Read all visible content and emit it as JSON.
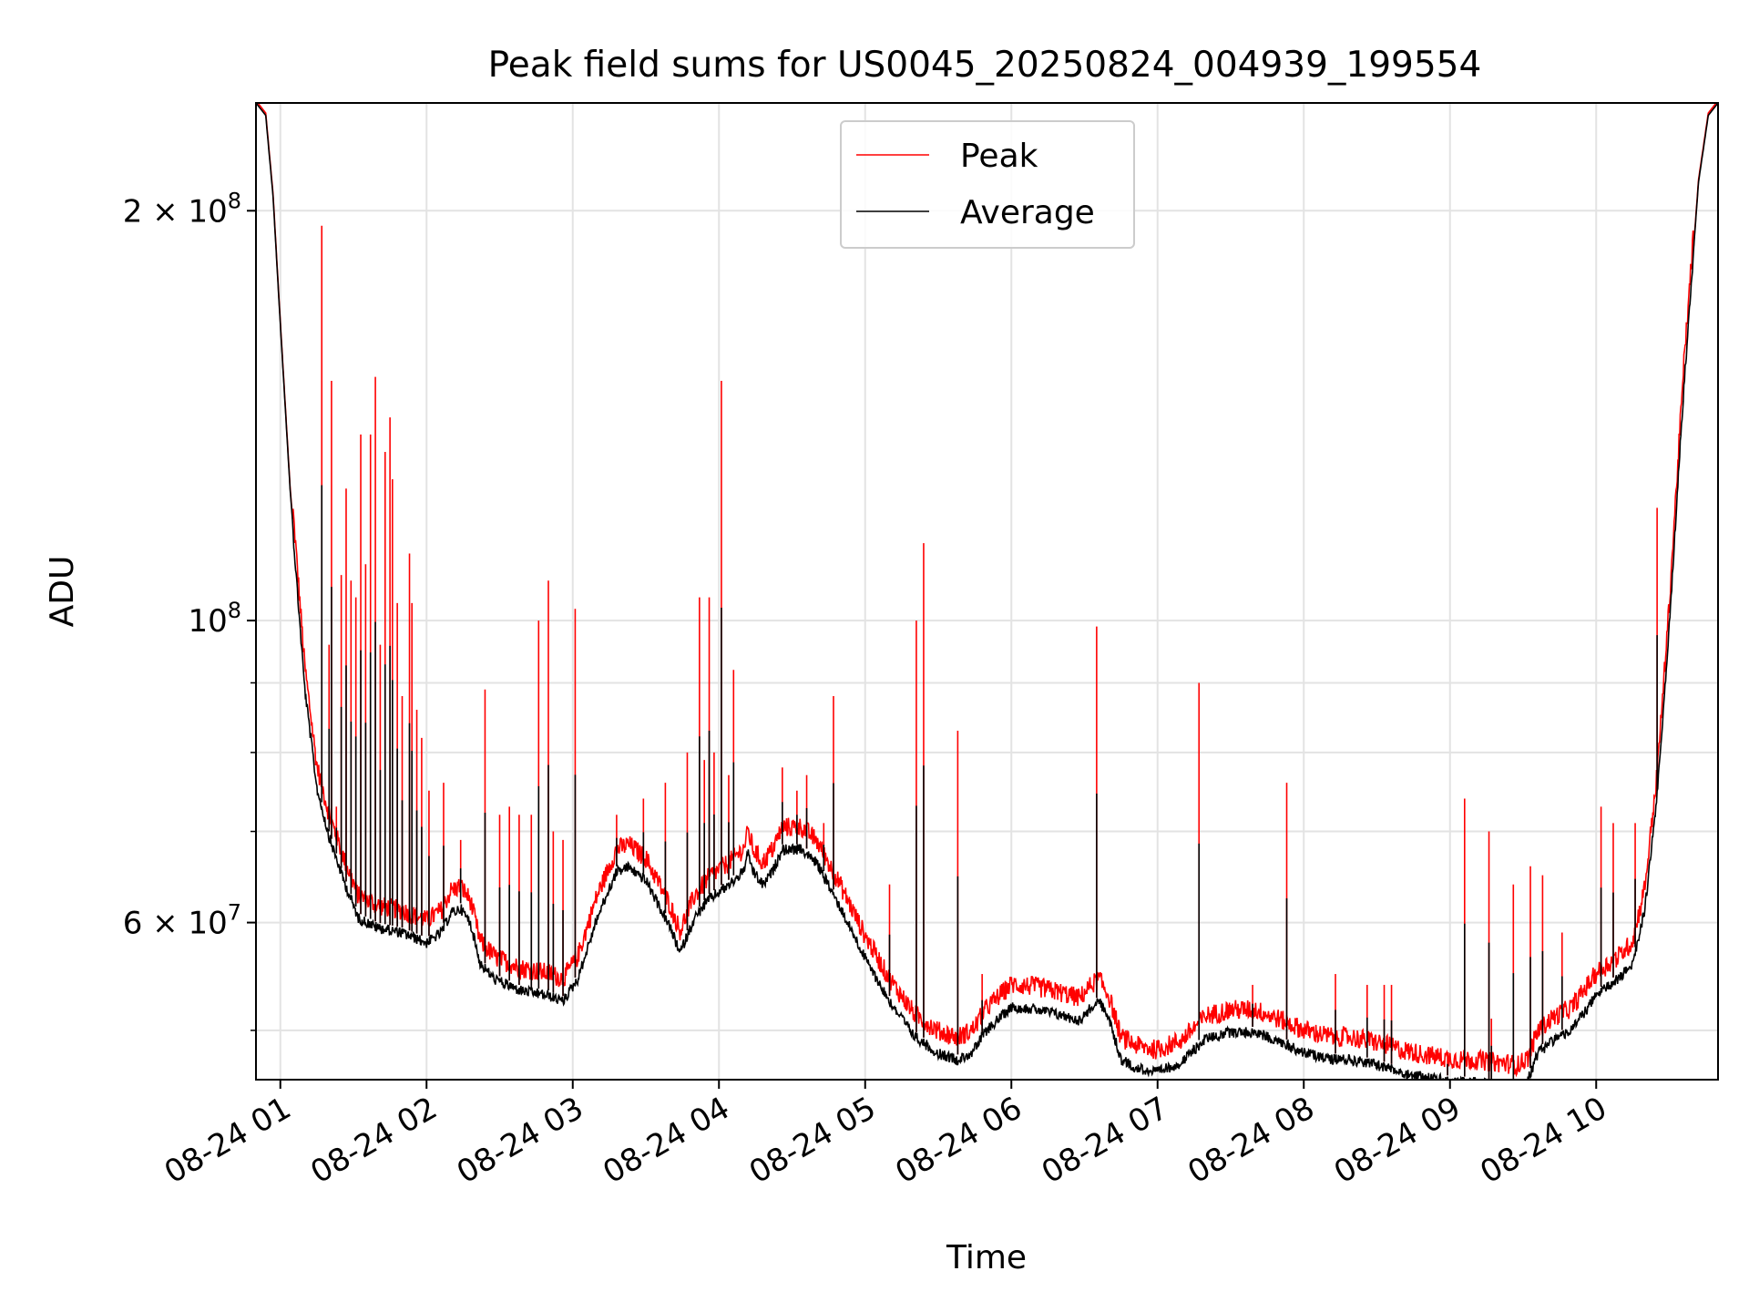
{
  "chart_data": {
    "type": "line",
    "title": "Peak field sums for US0045_20250824_004939_199554",
    "xlabel": "Time",
    "ylabel": "ADU",
    "x_scale": "time",
    "y_scale": "log",
    "xlim": [
      "2025-08-24 00:50",
      "2025-08-24 10:50"
    ],
    "ylim": [
      46000000,
      240000000
    ],
    "grid": true,
    "legend_position": "upper center",
    "x_ticks": [
      {
        "value": "2025-08-24 01:00",
        "label": "08-24 01"
      },
      {
        "value": "2025-08-24 02:00",
        "label": "08-24 02"
      },
      {
        "value": "2025-08-24 03:00",
        "label": "08-24 03"
      },
      {
        "value": "2025-08-24 04:00",
        "label": "08-24 04"
      },
      {
        "value": "2025-08-24 05:00",
        "label": "08-24 05"
      },
      {
        "value": "2025-08-24 06:00",
        "label": "08-24 06"
      },
      {
        "value": "2025-08-24 07:00",
        "label": "08-24 07"
      },
      {
        "value": "2025-08-24 08:00",
        "label": "08-24 08"
      },
      {
        "value": "2025-08-24 09:00",
        "label": "08-24 09"
      },
      {
        "value": "2025-08-24 10:00",
        "label": "08-24 10"
      }
    ],
    "y_major_ticks": [
      {
        "value": 100000000,
        "mantissa": "",
        "base": "10",
        "exp": "8"
      },
      {
        "value": 200000000,
        "mantissa": "2 × ",
        "base": "10",
        "exp": "8"
      },
      {
        "value": 60000000,
        "mantissa": "6 × ",
        "base": "10",
        "exp": "7"
      }
    ],
    "y_minor_ticks": [
      50000000,
      70000000,
      80000000,
      90000000
    ],
    "series": [
      {
        "name": "Peak",
        "color": "#ff0000",
        "spike_data": [
          [
            "2025-08-24 01:17",
            195000000
          ],
          [
            "2025-08-24 01:20",
            96000000
          ],
          [
            "2025-08-24 01:21",
            150000000
          ],
          [
            "2025-08-24 01:23",
            73000000
          ],
          [
            "2025-08-24 01:25",
            108000000
          ],
          [
            "2025-08-24 01:27",
            125000000
          ],
          [
            "2025-08-24 01:29",
            107000000
          ],
          [
            "2025-08-24 01:31",
            104000000
          ],
          [
            "2025-08-24 01:33",
            137000000
          ],
          [
            "2025-08-24 01:35",
            110000000
          ],
          [
            "2025-08-24 01:37",
            137000000
          ],
          [
            "2025-08-24 01:39",
            151000000
          ],
          [
            "2025-08-24 01:41",
            96000000
          ],
          [
            "2025-08-24 01:43",
            133000000
          ],
          [
            "2025-08-24 01:45",
            141000000
          ],
          [
            "2025-08-24 01:46",
            127000000
          ],
          [
            "2025-08-24 01:48",
            103000000
          ],
          [
            "2025-08-24 01:50",
            88000000
          ],
          [
            "2025-08-24 01:53",
            112000000
          ],
          [
            "2025-08-24 01:54",
            103000000
          ],
          [
            "2025-08-24 01:56",
            86000000
          ],
          [
            "2025-08-24 01:58",
            82000000
          ],
          [
            "2025-08-24 02:01",
            75000000
          ],
          [
            "2025-08-24 02:07",
            76000000
          ],
          [
            "2025-08-24 02:14",
            69000000
          ],
          [
            "2025-08-24 02:24",
            89000000
          ],
          [
            "2025-08-24 02:30",
            72000000
          ],
          [
            "2025-08-24 02:34",
            73000000
          ],
          [
            "2025-08-24 02:38",
            72000000
          ],
          [
            "2025-08-24 02:43",
            72000000
          ],
          [
            "2025-08-24 02:46",
            100000000
          ],
          [
            "2025-08-24 02:50",
            107000000
          ],
          [
            "2025-08-24 02:52",
            70000000
          ],
          [
            "2025-08-24 02:56",
            69000000
          ],
          [
            "2025-08-24 03:01",
            102000000
          ],
          [
            "2025-08-24 03:18",
            72000000
          ],
          [
            "2025-08-24 03:29",
            74000000
          ],
          [
            "2025-08-24 03:38",
            76000000
          ],
          [
            "2025-08-24 03:47",
            80000000
          ],
          [
            "2025-08-24 03:52",
            104000000
          ],
          [
            "2025-08-24 03:54",
            79000000
          ],
          [
            "2025-08-24 03:56",
            104000000
          ],
          [
            "2025-08-24 03:58",
            80000000
          ],
          [
            "2025-08-24 04:01",
            150000000
          ],
          [
            "2025-08-24 04:04",
            77000000
          ],
          [
            "2025-08-24 04:06",
            92000000
          ],
          [
            "2025-08-24 04:26",
            78000000
          ],
          [
            "2025-08-24 04:32",
            75000000
          ],
          [
            "2025-08-24 04:36",
            77000000
          ],
          [
            "2025-08-24 04:43",
            71000000
          ],
          [
            "2025-08-24 04:47",
            88000000
          ],
          [
            "2025-08-24 05:10",
            64000000
          ],
          [
            "2025-08-24 05:21",
            100000000
          ],
          [
            "2025-08-24 05:24",
            114000000
          ],
          [
            "2025-08-24 05:38",
            83000000
          ],
          [
            "2025-08-24 05:48",
            55000000
          ],
          [
            "2025-08-24 06:35",
            99000000
          ],
          [
            "2025-08-24 07:17",
            90000000
          ],
          [
            "2025-08-24 07:39",
            54000000
          ],
          [
            "2025-08-24 07:53",
            76000000
          ],
          [
            "2025-08-24 08:13",
            55000000
          ],
          [
            "2025-08-24 08:26",
            54000000
          ],
          [
            "2025-08-24 08:33",
            54000000
          ],
          [
            "2025-08-24 08:36",
            54000000
          ],
          [
            "2025-08-24 08:59",
            48000000
          ],
          [
            "2025-08-24 09:06",
            74000000
          ],
          [
            "2025-08-24 09:16",
            70000000
          ],
          [
            "2025-08-24 09:17",
            51000000
          ],
          [
            "2025-08-24 09:26",
            64000000
          ],
          [
            "2025-08-24 09:33",
            66000000
          ],
          [
            "2025-08-24 09:38",
            65000000
          ],
          [
            "2025-08-24 09:46",
            59000000
          ],
          [
            "2025-08-24 10:02",
            73000000
          ],
          [
            "2025-08-24 10:07",
            71000000
          ],
          [
            "2025-08-24 10:16",
            71000000
          ],
          [
            "2025-08-24 10:25",
            121000000
          ]
        ]
      },
      {
        "name": "Average",
        "color": "#000000",
        "baseline_data": [
          [
            "2025-08-24 00:50",
            240000000
          ],
          [
            "2025-08-24 00:54",
            235000000
          ],
          [
            "2025-08-24 00:57",
            205000000
          ],
          [
            "2025-08-24 01:00",
            165000000
          ],
          [
            "2025-08-24 01:04",
            125000000
          ],
          [
            "2025-08-24 01:10",
            90000000
          ],
          [
            "2025-08-24 01:15",
            76000000
          ],
          [
            "2025-08-24 01:20",
            70000000
          ],
          [
            "2025-08-24 01:26",
            65000000
          ],
          [
            "2025-08-24 01:32",
            61000000
          ],
          [
            "2025-08-24 01:40",
            60000000
          ],
          [
            "2025-08-24 01:50",
            59500000
          ],
          [
            "2025-08-24 02:00",
            58500000
          ],
          [
            "2025-08-24 02:06",
            59500000
          ],
          [
            "2025-08-24 02:10",
            61500000
          ],
          [
            "2025-08-24 02:14",
            62000000
          ],
          [
            "2025-08-24 02:18",
            60500000
          ],
          [
            "2025-08-24 02:22",
            56500000
          ],
          [
            "2025-08-24 02:28",
            55000000
          ],
          [
            "2025-08-24 02:38",
            54000000
          ],
          [
            "2025-08-24 02:50",
            53500000
          ],
          [
            "2025-08-24 02:56",
            53000000
          ],
          [
            "2025-08-24 03:02",
            55000000
          ],
          [
            "2025-08-24 03:10",
            61000000
          ],
          [
            "2025-08-24 03:18",
            66000000
          ],
          [
            "2025-08-24 03:23",
            66500000
          ],
          [
            "2025-08-24 03:30",
            65000000
          ],
          [
            "2025-08-24 03:40",
            60000000
          ],
          [
            "2025-08-24 03:44",
            57500000
          ],
          [
            "2025-08-24 03:50",
            61000000
          ],
          [
            "2025-08-24 03:56",
            63000000
          ],
          [
            "2025-08-24 04:04",
            64500000
          ],
          [
            "2025-08-24 04:10",
            66000000
          ],
          [
            "2025-08-24 04:12",
            68000000
          ],
          [
            "2025-08-24 04:14",
            66000000
          ],
          [
            "2025-08-24 04:18",
            64500000
          ],
          [
            "2025-08-24 04:22",
            66000000
          ],
          [
            "2025-08-24 04:26",
            68500000
          ],
          [
            "2025-08-24 04:34",
            68500000
          ],
          [
            "2025-08-24 04:40",
            67000000
          ],
          [
            "2025-08-24 04:50",
            62000000
          ],
          [
            "2025-08-24 05:00",
            57000000
          ],
          [
            "2025-08-24 05:10",
            53000000
          ],
          [
            "2025-08-24 05:20",
            50000000
          ],
          [
            "2025-08-24 05:30",
            48500000
          ],
          [
            "2025-08-24 05:38",
            48000000
          ],
          [
            "2025-08-24 05:44",
            48600000
          ],
          [
            "2025-08-24 05:50",
            50500000
          ],
          [
            "2025-08-24 06:00",
            52500000
          ],
          [
            "2025-08-24 06:10",
            52300000
          ],
          [
            "2025-08-24 06:20",
            51800000
          ],
          [
            "2025-08-24 06:28",
            51300000
          ],
          [
            "2025-08-24 06:33",
            52500000
          ],
          [
            "2025-08-24 06:36",
            53000000
          ],
          [
            "2025-08-24 06:40",
            51500000
          ],
          [
            "2025-08-24 06:45",
            48000000
          ],
          [
            "2025-08-24 06:52",
            47300000
          ],
          [
            "2025-08-24 07:00",
            47000000
          ],
          [
            "2025-08-24 07:10",
            47800000
          ],
          [
            "2025-08-24 07:20",
            49800000
          ],
          [
            "2025-08-24 07:30",
            50300000
          ],
          [
            "2025-08-24 07:40",
            50300000
          ],
          [
            "2025-08-24 07:50",
            49500000
          ],
          [
            "2025-08-24 08:00",
            48600000
          ],
          [
            "2025-08-24 08:10",
            48100000
          ],
          [
            "2025-08-24 08:20",
            48000000
          ],
          [
            "2025-08-24 08:30",
            47600000
          ],
          [
            "2025-08-24 08:40",
            47000000
          ],
          [
            "2025-08-24 08:50",
            46600000
          ],
          [
            "2025-08-24 09:00",
            46300000
          ],
          [
            "2025-08-24 09:10",
            46200000
          ],
          [
            "2025-08-24 09:20",
            46000000
          ],
          [
            "2025-08-24 09:28",
            45800000
          ],
          [
            "2025-08-24 09:32",
            46400000
          ],
          [
            "2025-08-24 09:36",
            48500000
          ],
          [
            "2025-08-24 09:42",
            49600000
          ],
          [
            "2025-08-24 09:50",
            50500000
          ],
          [
            "2025-08-24 10:00",
            53500000
          ],
          [
            "2025-08-24 10:10",
            55200000
          ],
          [
            "2025-08-24 10:15",
            56500000
          ],
          [
            "2025-08-24 10:20",
            62000000
          ],
          [
            "2025-08-24 10:25",
            75000000
          ],
          [
            "2025-08-24 10:30",
            100000000
          ],
          [
            "2025-08-24 10:36",
            150000000
          ],
          [
            "2025-08-24 10:42",
            210000000
          ],
          [
            "2025-08-24 10:46",
            235000000
          ],
          [
            "2025-08-24 10:50",
            240000000
          ]
        ]
      }
    ]
  }
}
